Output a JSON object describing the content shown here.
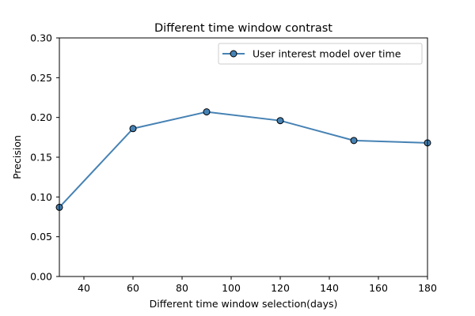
{
  "chart_data": {
    "type": "line",
    "title": "Different time window contrast",
    "xlabel": "Different time window selection(days)",
    "ylabel": "Precision",
    "xlim": [
      30,
      180
    ],
    "ylim": [
      0.0,
      0.3
    ],
    "xticks": [
      40,
      60,
      80,
      100,
      120,
      140,
      160,
      180
    ],
    "yticks": [
      0.0,
      0.05,
      0.1,
      0.15,
      0.2,
      0.25,
      0.3
    ],
    "xtick_labels": [
      "40",
      "60",
      "80",
      "100",
      "120",
      "140",
      "160",
      "180"
    ],
    "ytick_labels": [
      "0.00",
      "0.05",
      "0.10",
      "0.15",
      "0.20",
      "0.25",
      "0.30"
    ],
    "grid": false,
    "legend_position": "top-right",
    "series": [
      {
        "name": "User interest model over time",
        "color": "#4682b4",
        "marker_edge_color": "#000000",
        "x": [
          30,
          60,
          90,
          120,
          150,
          180
        ],
        "y": [
          0.087,
          0.186,
          0.207,
          0.196,
          0.171,
          0.168
        ]
      }
    ]
  }
}
